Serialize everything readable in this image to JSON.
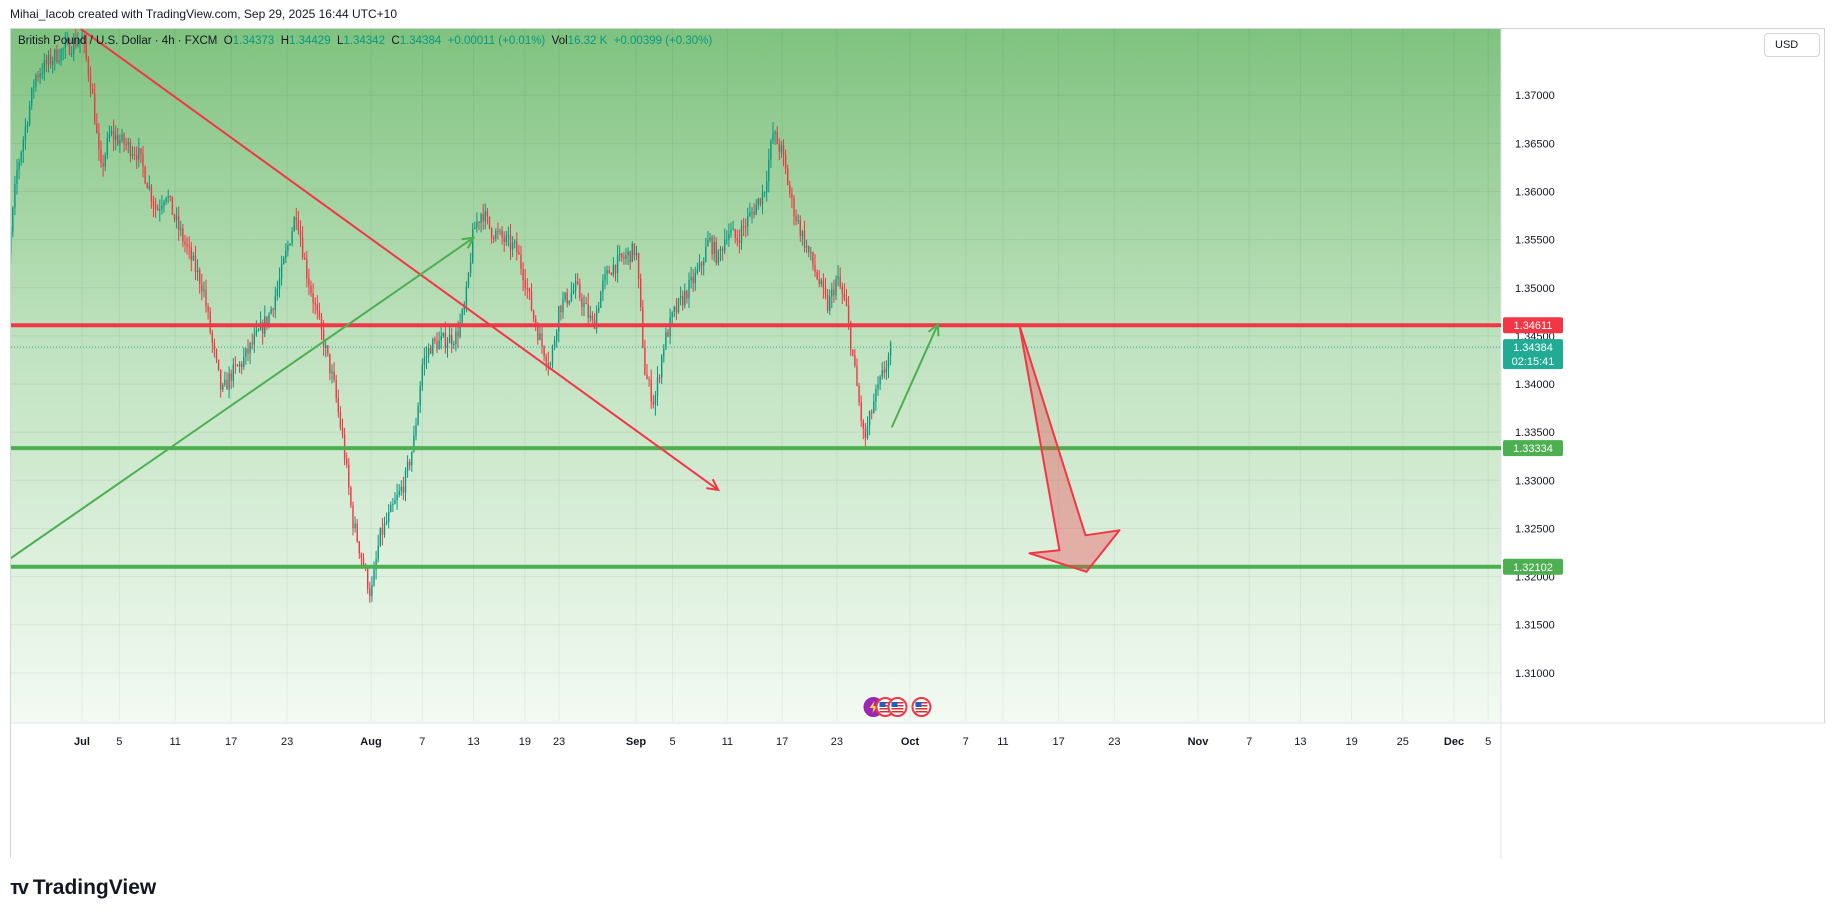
{
  "header": {
    "created_by": "Mihai_Iacob created with TradingView.com, Sep 29, 2025 16:44 UTC+10"
  },
  "legend": {
    "symbol": "British Pound / U.S. Dollar · 4h · FXCM",
    "open_label": "O",
    "open": "1.34373",
    "high_label": "H",
    "high": "1.34429",
    "low_label": "L",
    "low": "1.34342",
    "close_label": "C",
    "close": "1.34384",
    "change": "+0.00011 (+0.01%)",
    "vol_label": "Vol",
    "vol": "16.32 K",
    "vol_change": "+0.00399 (+0.30%)"
  },
  "currency_button": "USD",
  "brand": {
    "name": "TradingView",
    "logo_icon": "tradingview-logo-icon"
  },
  "colors": {
    "resistance": "#f23645",
    "support": "#4caf50",
    "last_price": "#22ab94",
    "up_candle": "#089981",
    "down_candle": "#f23645",
    "arrow_red": "#f23645",
    "arrow_green": "#4caf50"
  },
  "chart_data": {
    "type": "candlestick",
    "symbol": "GBPUSD",
    "timeframe": "4h",
    "ylim": [
      1.305,
      1.3775
    ],
    "y_ticks": [
      "1.37000",
      "1.36500",
      "1.36000",
      "1.35500",
      "1.35000",
      "1.34500",
      "1.34000",
      "1.33500",
      "1.33000",
      "1.32500",
      "1.32000",
      "1.31500",
      "1.31000"
    ],
    "x_ticks": [
      {
        "label": "Jul",
        "date": "2025-07-01",
        "bold": true
      },
      {
        "label": "5",
        "date": "2025-07-05"
      },
      {
        "label": "11",
        "date": "2025-07-11"
      },
      {
        "label": "17",
        "date": "2025-07-17"
      },
      {
        "label": "23",
        "date": "2025-07-23"
      },
      {
        "label": "Aug",
        "date": "2025-08-01",
        "bold": true
      },
      {
        "label": "7",
        "date": "2025-08-07"
      },
      {
        "label": "13",
        "date": "2025-08-13"
      },
      {
        "label": "19",
        "date": "2025-08-19"
      },
      {
        "label": "23",
        "date": "2025-08-23"
      },
      {
        "label": "Sep",
        "date": "2025-09-01",
        "bold": true
      },
      {
        "label": "5",
        "date": "2025-09-05"
      },
      {
        "label": "11",
        "date": "2025-09-11"
      },
      {
        "label": "17",
        "date": "2025-09-17"
      },
      {
        "label": "23",
        "date": "2025-09-23"
      },
      {
        "label": "Oct",
        "date": "2025-10-01",
        "bold": true
      },
      {
        "label": "7",
        "date": "2025-10-07"
      },
      {
        "label": "11",
        "date": "2025-10-11"
      },
      {
        "label": "17",
        "date": "2025-10-17"
      },
      {
        "label": "23",
        "date": "2025-10-23"
      },
      {
        "label": "Nov",
        "date": "2025-11-01",
        "bold": true
      },
      {
        "label": "7",
        "date": "2025-11-07"
      },
      {
        "label": "13",
        "date": "2025-11-13"
      },
      {
        "label": "19",
        "date": "2025-11-19"
      },
      {
        "label": "25",
        "date": "2025-11-25"
      },
      {
        "label": "Dec",
        "date": "2025-12-01",
        "bold": true
      },
      {
        "label": "5",
        "date": "2025-12-05"
      }
    ],
    "price_path": [
      [
        "2025-06-22",
        1.342
      ],
      [
        "2025-06-24",
        1.362
      ],
      [
        "2025-06-26",
        1.372
      ],
      [
        "2025-06-28",
        1.374
      ],
      [
        "2025-07-01",
        1.376
      ],
      [
        "2025-07-02",
        1.371
      ],
      [
        "2025-07-03",
        1.362
      ],
      [
        "2025-07-04",
        1.366
      ],
      [
        "2025-07-07",
        1.364
      ],
      [
        "2025-07-09",
        1.358
      ],
      [
        "2025-07-10",
        1.36
      ],
      [
        "2025-07-11",
        1.357
      ],
      [
        "2025-07-14",
        1.35
      ],
      [
        "2025-07-15",
        1.344
      ],
      [
        "2025-07-16",
        1.339
      ],
      [
        "2025-07-17",
        1.341
      ],
      [
        "2025-07-18",
        1.342
      ],
      [
        "2025-07-21",
        1.347
      ],
      [
        "2025-07-22",
        1.35
      ],
      [
        "2025-07-23",
        1.354
      ],
      [
        "2025-07-24",
        1.358
      ],
      [
        "2025-07-25",
        1.352
      ],
      [
        "2025-07-28",
        1.34
      ],
      [
        "2025-07-29",
        1.334
      ],
      [
        "2025-07-30",
        1.326
      ],
      [
        "2025-07-31",
        1.322
      ],
      [
        "2025-08-01",
        1.318
      ],
      [
        "2025-08-02",
        1.324
      ],
      [
        "2025-08-04",
        1.328
      ],
      [
        "2025-08-05",
        1.33
      ],
      [
        "2025-08-06",
        1.334
      ],
      [
        "2025-08-07",
        1.342
      ],
      [
        "2025-08-08",
        1.344
      ],
      [
        "2025-08-11",
        1.345
      ],
      [
        "2025-08-12",
        1.348
      ],
      [
        "2025-08-13",
        1.356
      ],
      [
        "2025-08-14",
        1.358
      ],
      [
        "2025-08-15",
        1.356
      ],
      [
        "2025-08-18",
        1.354
      ],
      [
        "2025-08-19",
        1.351
      ],
      [
        "2025-08-20",
        1.347
      ],
      [
        "2025-08-21",
        1.344
      ],
      [
        "2025-08-22",
        1.342
      ],
      [
        "2025-08-23",
        1.348
      ],
      [
        "2025-08-25",
        1.35
      ],
      [
        "2025-08-26",
        1.348
      ],
      [
        "2025-08-27",
        1.346
      ],
      [
        "2025-08-28",
        1.35
      ],
      [
        "2025-08-29",
        1.352
      ],
      [
        "2025-09-01",
        1.354
      ],
      [
        "2025-09-02",
        1.341
      ],
      [
        "2025-09-03",
        1.338
      ],
      [
        "2025-09-04",
        1.344
      ],
      [
        "2025-09-05",
        1.347
      ],
      [
        "2025-09-08",
        1.352
      ],
      [
        "2025-09-09",
        1.355
      ],
      [
        "2025-09-10",
        1.353
      ],
      [
        "2025-09-11",
        1.356
      ],
      [
        "2025-09-12",
        1.355
      ],
      [
        "2025-09-15",
        1.36
      ],
      [
        "2025-09-16",
        1.366
      ],
      [
        "2025-09-17",
        1.364
      ],
      [
        "2025-09-18",
        1.359
      ],
      [
        "2025-09-19",
        1.356
      ],
      [
        "2025-09-22",
        1.348
      ],
      [
        "2025-09-23",
        1.351
      ],
      [
        "2025-09-24",
        1.348
      ],
      [
        "2025-09-25",
        1.341
      ],
      [
        "2025-09-26",
        1.334
      ],
      [
        "2025-09-27",
        1.338
      ],
      [
        "2025-09-29",
        1.3438
      ]
    ],
    "horizontal_levels": [
      {
        "price": 1.34611,
        "label": "1.34611",
        "color": "#f23645"
      },
      {
        "price": 1.33334,
        "label": "1.33334",
        "color": "#4caf50"
      },
      {
        "price": 1.32102,
        "label": "1.32102",
        "color": "#4caf50"
      }
    ],
    "last_price": {
      "price": 1.34384,
      "label": "1.34384",
      "countdown": "02:15:41"
    },
    "drawings": {
      "red_trendline": {
        "from": [
          "2025-06-30",
          1.3775
        ],
        "to": [
          "2025-09-10",
          1.329
        ]
      },
      "green_trendline": {
        "from": [
          "2025-06-22",
          1.321
        ],
        "to": [
          "2025-08-13",
          1.3552
        ]
      },
      "green_arrow": {
        "from": [
          "2025-09-29",
          1.3355
        ],
        "to": [
          "2025-10-04",
          1.3462
        ]
      },
      "red_big_arrow": {
        "from": [
          "2025-10-13",
          1.3461
        ],
        "to": [
          "2025-10-20",
          1.3205
        ]
      }
    },
    "event_icons": [
      "lightning-icon",
      "us-flag-icon",
      "us-flag-icon",
      "us-flag-icon"
    ]
  }
}
